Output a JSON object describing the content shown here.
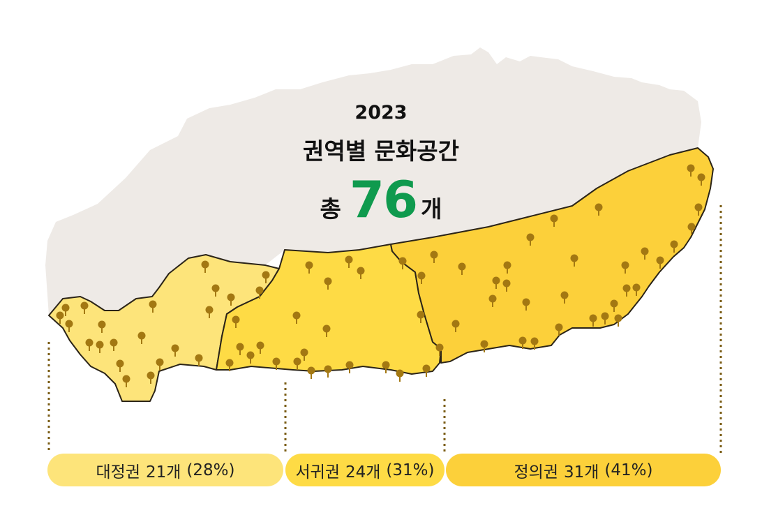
{
  "header": {
    "year": "2023",
    "title": "권역별 문화공간",
    "total_prefix": "총",
    "total_value": "76",
    "total_suffix": "개"
  },
  "regions": [
    {
      "name": "대정권",
      "count": "21개",
      "percent": "(28%)",
      "value": 21,
      "color": "#fde47a"
    },
    {
      "name": "서귀권",
      "count": "24개",
      "percent": "(31%)",
      "value": 24,
      "color": "#fedb45"
    },
    {
      "name": "정의권",
      "count": "31개",
      "percent": "(41%)",
      "value": 31,
      "color": "#fcd03a"
    }
  ],
  "colors": {
    "island_north": "#eeeae6",
    "outline": "#2b2418",
    "pin": "#a37812",
    "guide": "#7a5c14",
    "accent": "#0f9a4e"
  },
  "icons": {
    "pin": "map-pin-icon"
  }
}
